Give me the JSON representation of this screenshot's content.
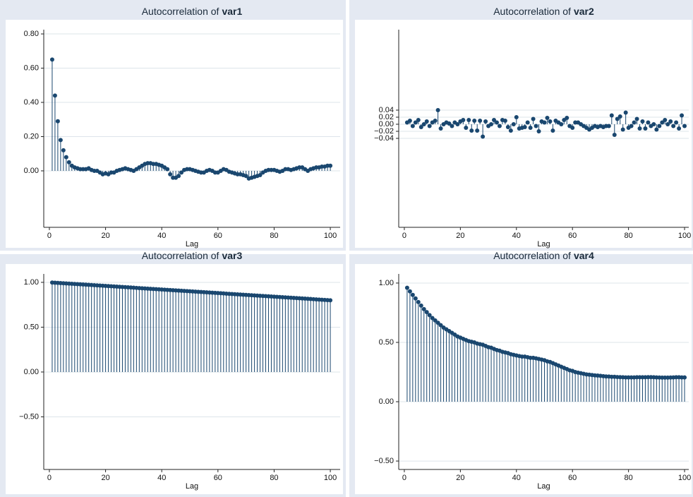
{
  "chart_data": [
    {
      "type": "stem",
      "title": "Autocorrelation of",
      "variable": "var1",
      "xlabel": "Lag",
      "color": "#1a476f",
      "grid": true,
      "x": [
        1,
        2,
        3,
        4,
        5,
        6,
        7,
        8,
        9,
        10,
        11,
        12,
        13,
        14,
        15,
        16,
        17,
        18,
        19,
        20,
        21,
        22,
        23,
        24,
        25,
        26,
        27,
        28,
        29,
        30,
        31,
        32,
        33,
        34,
        35,
        36,
        37,
        38,
        39,
        40,
        41,
        42,
        43,
        44,
        45,
        46,
        47,
        48,
        49,
        50,
        51,
        52,
        53,
        54,
        55,
        56,
        57,
        58,
        59,
        60,
        61,
        62,
        63,
        64,
        65,
        66,
        67,
        68,
        69,
        70,
        71,
        72,
        73,
        74,
        75,
        76,
        77,
        78,
        79,
        80,
        81,
        82,
        83,
        84,
        85,
        86,
        87,
        88,
        89,
        90,
        91,
        92,
        93,
        94,
        95,
        96,
        97,
        98,
        99,
        100
      ],
      "values": [
        0.65,
        0.44,
        0.29,
        0.18,
        0.12,
        0.08,
        0.05,
        0.03,
        0.02,
        0.015,
        0.01,
        0.01,
        0.01,
        0.015,
        0.005,
        0.0,
        0.0,
        -0.01,
        -0.02,
        -0.015,
        -0.02,
        -0.01,
        -0.01,
        0.0,
        0.005,
        0.01,
        0.015,
        0.01,
        0.005,
        0.0,
        0.01,
        0.02,
        0.03,
        0.04,
        0.045,
        0.045,
        0.04,
        0.04,
        0.035,
        0.03,
        0.02,
        0.01,
        -0.02,
        -0.04,
        -0.04,
        -0.03,
        -0.01,
        0.005,
        0.01,
        0.01,
        0.005,
        0.0,
        -0.005,
        -0.01,
        -0.01,
        0.0,
        0.005,
        0.0,
        -0.01,
        -0.01,
        0.0,
        0.01,
        0.005,
        -0.005,
        -0.01,
        -0.015,
        -0.02,
        -0.02,
        -0.025,
        -0.03,
        -0.045,
        -0.04,
        -0.035,
        -0.03,
        -0.025,
        -0.01,
        0.0,
        0.005,
        0.005,
        0.005,
        0.0,
        -0.005,
        0.0,
        0.01,
        0.01,
        0.005,
        0.01,
        0.015,
        0.02,
        0.02,
        0.01,
        0.0,
        0.01,
        0.015,
        0.02,
        0.02,
        0.025,
        0.025,
        0.03,
        0.03
      ],
      "xlim": [
        -2,
        103.5
      ],
      "xticks": [
        0,
        20,
        40,
        60,
        80,
        100
      ],
      "ylim": [
        -0.33,
        0.825
      ],
      "yticks": [
        {
          "value": 0.0,
          "label": "0.00"
        },
        {
          "value": 0.2,
          "label": "0.20"
        },
        {
          "value": 0.4,
          "label": "0.40"
        },
        {
          "value": 0.6,
          "label": "0.60"
        },
        {
          "value": 0.8,
          "label": "0.80"
        }
      ]
    },
    {
      "type": "stem",
      "title": "Autocorrelation of",
      "variable": "var2",
      "xlabel": "Lag",
      "color": "#1a476f",
      "grid": true,
      "x": [
        1,
        2,
        3,
        4,
        5,
        6,
        7,
        8,
        9,
        10,
        11,
        12,
        13,
        14,
        15,
        16,
        17,
        18,
        19,
        20,
        21,
        22,
        23,
        24,
        25,
        26,
        27,
        28,
        29,
        30,
        31,
        32,
        33,
        34,
        35,
        36,
        37,
        38,
        39,
        40,
        41,
        42,
        43,
        44,
        45,
        46,
        47,
        48,
        49,
        50,
        51,
        52,
        53,
        54,
        55,
        56,
        57,
        58,
        59,
        60,
        61,
        62,
        63,
        64,
        65,
        66,
        67,
        68,
        69,
        70,
        71,
        72,
        73,
        74,
        75,
        76,
        77,
        78,
        79,
        80,
        81,
        82,
        83,
        84,
        85,
        86,
        87,
        88,
        89,
        90,
        91,
        92,
        93,
        94,
        95,
        96,
        97,
        98,
        99,
        100
      ],
      "values": [
        0.005,
        0.01,
        -0.005,
        0.005,
        0.012,
        -0.008,
        0.0,
        0.008,
        -0.005,
        0.005,
        0.01,
        0.04,
        -0.012,
        0.0,
        0.005,
        0.002,
        -0.005,
        0.005,
        0.0,
        0.008,
        0.012,
        -0.01,
        0.012,
        -0.018,
        0.01,
        -0.018,
        0.01,
        -0.035,
        0.008,
        -0.005,
        0.0,
        0.012,
        0.005,
        -0.005,
        0.012,
        0.01,
        -0.008,
        -0.018,
        0.0,
        0.02,
        -0.012,
        -0.01,
        -0.008,
        0.005,
        -0.01,
        0.015,
        -0.005,
        -0.02,
        0.008,
        0.005,
        0.018,
        0.008,
        -0.018,
        0.01,
        0.005,
        0.0,
        0.012,
        0.018,
        -0.005,
        -0.01,
        0.005,
        0.005,
        0.0,
        -0.005,
        -0.01,
        -0.015,
        -0.01,
        -0.005,
        -0.008,
        -0.005,
        -0.008,
        -0.005,
        -0.005,
        0.025,
        -0.03,
        0.015,
        0.022,
        -0.015,
        0.033,
        -0.01,
        -0.005,
        0.005,
        0.015,
        -0.012,
        0.008,
        -0.012,
        0.005,
        -0.005,
        0.0,
        -0.015,
        -0.005,
        0.005,
        0.012,
        0.0,
        0.008,
        -0.005,
        0.005,
        -0.012,
        0.025,
        -0.005
      ],
      "xlim": [
        -2,
        101.5
      ],
      "xticks": [
        0,
        20,
        40,
        60,
        80,
        100
      ],
      "ylim": [
        -0.292,
        0.268
      ],
      "yticks": [
        {
          "value": -0.04,
          "label": "−0.04"
        },
        {
          "value": -0.02,
          "label": "−0.02"
        },
        {
          "value": 0.0,
          "label": "0.00"
        },
        {
          "value": 0.02,
          "label": "0.02"
        },
        {
          "value": 0.04,
          "label": "0.04"
        }
      ]
    },
    {
      "type": "stem",
      "title": "Autocorrelation of",
      "variable": "var3",
      "xlabel": "Lag",
      "color": "#1a476f",
      "grid": true,
      "x": [
        1,
        2,
        3,
        4,
        5,
        6,
        7,
        8,
        9,
        10,
        11,
        12,
        13,
        14,
        15,
        16,
        17,
        18,
        19,
        20,
        21,
        22,
        23,
        24,
        25,
        26,
        27,
        28,
        29,
        30,
        31,
        32,
        33,
        34,
        35,
        36,
        37,
        38,
        39,
        40,
        41,
        42,
        43,
        44,
        45,
        46,
        47,
        48,
        49,
        50,
        51,
        52,
        53,
        54,
        55,
        56,
        57,
        58,
        59,
        60,
        61,
        62,
        63,
        64,
        65,
        66,
        67,
        68,
        69,
        70,
        71,
        72,
        73,
        74,
        75,
        76,
        77,
        78,
        79,
        80,
        81,
        82,
        83,
        84,
        85,
        86,
        87,
        88,
        89,
        90,
        91,
        92,
        93,
        94,
        95,
        96,
        97,
        98,
        99,
        100
      ],
      "values": [
        0.998,
        0.996,
        0.994,
        0.992,
        0.99,
        0.988,
        0.986,
        0.984,
        0.982,
        0.98,
        0.978,
        0.976,
        0.974,
        0.972,
        0.97,
        0.968,
        0.966,
        0.964,
        0.962,
        0.96,
        0.958,
        0.956,
        0.954,
        0.952,
        0.95,
        0.948,
        0.946,
        0.944,
        0.942,
        0.94,
        0.938,
        0.936,
        0.934,
        0.932,
        0.93,
        0.928,
        0.926,
        0.924,
        0.922,
        0.92,
        0.918,
        0.916,
        0.914,
        0.912,
        0.91,
        0.908,
        0.906,
        0.904,
        0.902,
        0.9,
        0.898,
        0.896,
        0.894,
        0.892,
        0.89,
        0.888,
        0.886,
        0.884,
        0.882,
        0.88,
        0.878,
        0.876,
        0.874,
        0.872,
        0.87,
        0.868,
        0.866,
        0.864,
        0.862,
        0.86,
        0.858,
        0.856,
        0.854,
        0.852,
        0.85,
        0.848,
        0.846,
        0.844,
        0.842,
        0.84,
        0.838,
        0.836,
        0.834,
        0.832,
        0.83,
        0.828,
        0.826,
        0.824,
        0.822,
        0.82,
        0.818,
        0.816,
        0.814,
        0.812,
        0.81,
        0.808,
        0.806,
        0.804,
        0.802,
        0.8
      ],
      "xlim": [
        -2,
        103.5
      ],
      "xticks": [
        0,
        20,
        40,
        60,
        80,
        100
      ],
      "ylim": [
        -1.087,
        1.094
      ],
      "yticks": [
        {
          "value": -0.5,
          "label": "−0.50"
        },
        {
          "value": 0.0,
          "label": "0.00"
        },
        {
          "value": 0.5,
          "label": "0.50"
        },
        {
          "value": 1.0,
          "label": "1.00"
        }
      ]
    },
    {
      "type": "stem",
      "title": "Autocorrelation of",
      "variable": "var4",
      "xlabel": "Lag",
      "color": "#1a476f",
      "grid": true,
      "x": [
        1,
        2,
        3,
        4,
        5,
        6,
        7,
        8,
        9,
        10,
        11,
        12,
        13,
        14,
        15,
        16,
        17,
        18,
        19,
        20,
        21,
        22,
        23,
        24,
        25,
        26,
        27,
        28,
        29,
        30,
        31,
        32,
        33,
        34,
        35,
        36,
        37,
        38,
        39,
        40,
        41,
        42,
        43,
        44,
        45,
        46,
        47,
        48,
        49,
        50,
        51,
        52,
        53,
        54,
        55,
        56,
        57,
        58,
        59,
        60,
        61,
        62,
        63,
        64,
        65,
        66,
        67,
        68,
        69,
        70,
        71,
        72,
        73,
        74,
        75,
        76,
        77,
        78,
        79,
        80,
        81,
        82,
        83,
        84,
        85,
        86,
        87,
        88,
        89,
        90,
        91,
        92,
        93,
        94,
        95,
        96,
        97,
        98,
        99,
        100
      ],
      "values": [
        0.96,
        0.93,
        0.9,
        0.87,
        0.84,
        0.81,
        0.78,
        0.755,
        0.73,
        0.705,
        0.685,
        0.665,
        0.645,
        0.625,
        0.61,
        0.595,
        0.58,
        0.565,
        0.55,
        0.54,
        0.53,
        0.52,
        0.51,
        0.505,
        0.5,
        0.49,
        0.485,
        0.48,
        0.47,
        0.46,
        0.455,
        0.445,
        0.435,
        0.43,
        0.42,
        0.415,
        0.41,
        0.4,
        0.395,
        0.39,
        0.385,
        0.38,
        0.38,
        0.375,
        0.37,
        0.37,
        0.365,
        0.36,
        0.355,
        0.35,
        0.34,
        0.335,
        0.325,
        0.315,
        0.305,
        0.295,
        0.285,
        0.275,
        0.265,
        0.26,
        0.25,
        0.245,
        0.24,
        0.235,
        0.23,
        0.228,
        0.225,
        0.222,
        0.22,
        0.218,
        0.215,
        0.213,
        0.212,
        0.21,
        0.21,
        0.208,
        0.207,
        0.206,
        0.205,
        0.205,
        0.205,
        0.205,
        0.206,
        0.206,
        0.206,
        0.206,
        0.207,
        0.207,
        0.206,
        0.205,
        0.204,
        0.203,
        0.203,
        0.203,
        0.204,
        0.205,
        0.206,
        0.206,
        0.205,
        0.205
      ],
      "xlim": [
        -2,
        101.5
      ],
      "xticks": [
        0,
        20,
        40,
        60,
        80,
        100
      ],
      "ylim": [
        -0.571,
        1.077
      ],
      "yticks": [
        {
          "value": -0.5,
          "label": "−0.50"
        },
        {
          "value": 0.0,
          "label": "0.00"
        },
        {
          "value": 0.5,
          "label": "0.50"
        },
        {
          "value": 1.0,
          "label": "1.00"
        }
      ]
    }
  ]
}
